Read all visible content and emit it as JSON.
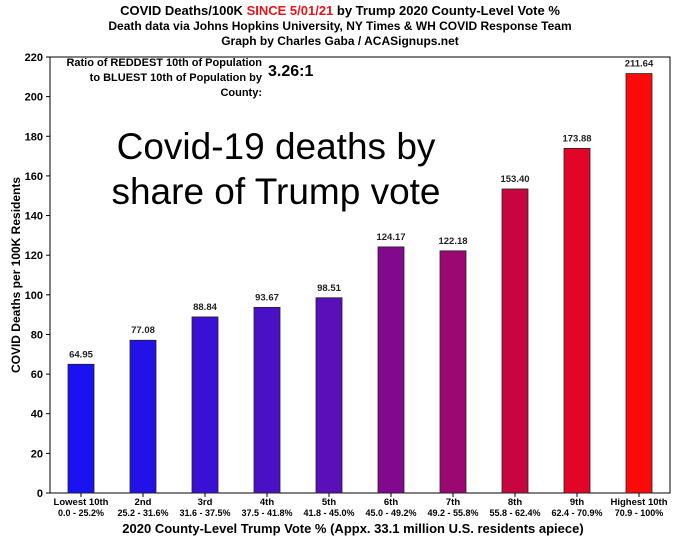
{
  "header": {
    "title_pre": "COVID Deaths/100K ",
    "title_highlight": "SINCE 5/01/21",
    "title_post": " by Trump 2020 County-Level Vote %",
    "subtitle": "Death data via Johns Hopkins University, NY Times & WH COVID Response Team",
    "credit": "Graph by Charles Gaba / ACASignups.net"
  },
  "ratio": {
    "line1": "Ratio of REDDEST 10th of Population",
    "line2": "to BLUEST 10th of Population by County:",
    "value": "3.26:1"
  },
  "overlay": {
    "line1": "Covid-19 deaths by",
    "line2": "share of Trump vote"
  },
  "chart_data": {
    "type": "bar",
    "title": "COVID Deaths/100K SINCE 5/01/21 by Trump 2020 County-Level Vote %",
    "ylabel": "COVID Deaths per 100K Residents",
    "xlabel": "2020 County-Level Trump Vote % (Appx. 33.1 million U.S. residents apiece)",
    "ylim": [
      0,
      220
    ],
    "yticks": [
      0,
      20,
      40,
      60,
      80,
      100,
      120,
      140,
      160,
      180,
      200,
      220
    ],
    "grid": false,
    "categories": [
      "Lowest 10th",
      "2nd",
      "3rd",
      "4th",
      "5th",
      "6th",
      "7th",
      "8th",
      "9th",
      "Highest 10th"
    ],
    "ranges": [
      "0.0 - 25.2%",
      "25.2 - 31.6%",
      "31.6 - 37.5%",
      "37.5 - 41.8%",
      "41.8 - 45.0%",
      "45.0 - 49.2%",
      "49.2 - 55.8%",
      "55.8 - 62.4%",
      "62.4 - 70.9%",
      "70.9 - 100%"
    ],
    "values": [
      64.95,
      77.08,
      88.84,
      93.67,
      98.51,
      124.17,
      122.18,
      153.4,
      173.88,
      211.64
    ],
    "value_labels": [
      "64.95",
      "77.08",
      "88.84",
      "93.67",
      "98.51",
      "124.17",
      "122.18",
      "153.40",
      "173.88",
      "211.64"
    ],
    "colors": [
      "#1a12f0",
      "#2212e8",
      "#3a10d6",
      "#4a10c6",
      "#5a0fb8",
      "#80098e",
      "#9c0872",
      "#c8063e",
      "#e20528",
      "#fb0a0a"
    ]
  }
}
